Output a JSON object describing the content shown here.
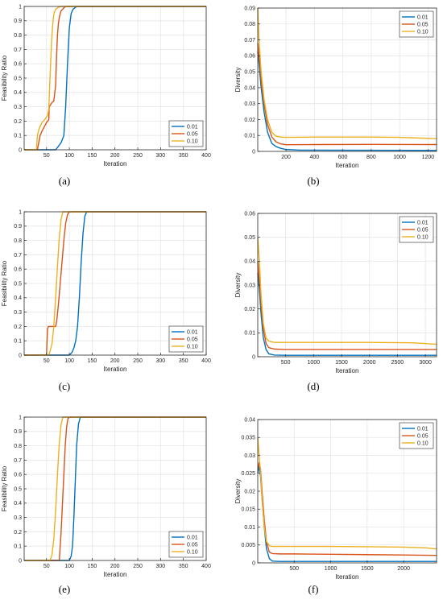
{
  "colors": {
    "s001": "#0072BD",
    "s005": "#D95319",
    "s010": "#EDB120",
    "grid": "#e6e6e6",
    "axis": "#262626"
  },
  "chart_data": [
    {
      "type": "line",
      "caption": "(a)",
      "xlabel": "Iteration",
      "ylabel": "Feasibility Ratio",
      "xlim": [
        1,
        400
      ],
      "ylim": [
        0,
        1
      ],
      "xticks": [
        50,
        100,
        150,
        200,
        250,
        300,
        350,
        400
      ],
      "yticks": [
        0,
        0.1,
        0.2,
        0.3,
        0.4,
        0.5,
        0.6,
        0.7,
        0.8,
        0.9,
        1
      ],
      "ytick_labels": [
        "0",
        "0.1",
        "0.2",
        "0.3",
        "0.4",
        "0.5",
        "0.6",
        "0.7",
        "0.8",
        "0.9",
        "1"
      ],
      "grid": true,
      "legend": "bottom-right",
      "series": [
        {
          "name": "0.01",
          "color": "#0072BD",
          "x": [
            1,
            70,
            75,
            82,
            88,
            92,
            96,
            100,
            104,
            108,
            112,
            116,
            400
          ],
          "y": [
            0,
            0,
            0.02,
            0.05,
            0.1,
            0.3,
            0.6,
            0.85,
            0.95,
            0.98,
            0.99,
            1,
            1
          ]
        },
        {
          "name": "0.05",
          "color": "#D95319",
          "x": [
            1,
            30,
            33,
            36,
            40,
            45,
            50,
            55,
            56,
            58,
            62,
            66,
            70,
            72,
            74,
            76,
            78,
            80,
            82,
            85,
            88,
            92,
            96,
            400
          ],
          "y": [
            0,
            0,
            0.05,
            0.1,
            0.13,
            0.16,
            0.19,
            0.21,
            0.3,
            0.31,
            0.33,
            0.34,
            0.45,
            0.65,
            0.8,
            0.88,
            0.92,
            0.95,
            0.97,
            0.98,
            0.99,
            1,
            1,
            1
          ]
        },
        {
          "name": "0.10",
          "color": "#EDB120",
          "x": [
            1,
            28,
            30,
            34,
            40,
            46,
            52,
            55,
            57,
            59,
            61,
            63,
            65,
            67,
            70,
            74,
            80,
            400
          ],
          "y": [
            0,
            0,
            0.1,
            0.15,
            0.19,
            0.21,
            0.24,
            0.28,
            0.45,
            0.6,
            0.75,
            0.85,
            0.92,
            0.96,
            0.98,
            0.99,
            1,
            1
          ]
        }
      ]
    },
    {
      "type": "line",
      "caption": "(b)",
      "xlabel": "Iteration",
      "ylabel": "Diversity",
      "xlim": [
        1,
        1260
      ],
      "ylim": [
        0,
        0.09
      ],
      "xticks": [
        200,
        400,
        600,
        800,
        1000,
        1200
      ],
      "yticks": [
        0,
        0.01,
        0.02,
        0.03,
        0.04,
        0.05,
        0.06,
        0.07,
        0.08,
        0.09
      ],
      "ytick_labels": [
        "0",
        "0.01",
        "0.02",
        "0.03",
        "0.04",
        "0.05",
        "0.06",
        "0.07",
        "0.08",
        "0.09"
      ],
      "grid": true,
      "legend": "top-right",
      "series": [
        {
          "name": "0.01",
          "color": "#0072BD",
          "x": [
            1,
            10,
            25,
            45,
            70,
            100,
            130,
            160,
            200,
            300,
            1260
          ],
          "y": [
            0.063,
            0.055,
            0.04,
            0.025,
            0.012,
            0.005,
            0.003,
            0.002,
            0.0012,
            0.0008,
            0.0006
          ]
        },
        {
          "name": "0.05",
          "color": "#D95319",
          "x": [
            1,
            10,
            25,
            45,
            70,
            100,
            130,
            160,
            200,
            400,
            800,
            1260
          ],
          "y": [
            0.068,
            0.06,
            0.045,
            0.03,
            0.017,
            0.009,
            0.006,
            0.0048,
            0.0042,
            0.0043,
            0.0044,
            0.0043
          ]
        },
        {
          "name": "0.10",
          "color": "#EDB120",
          "x": [
            1,
            10,
            25,
            45,
            70,
            100,
            130,
            160,
            200,
            400,
            800,
            1000,
            1260
          ],
          "y": [
            0.09,
            0.07,
            0.05,
            0.033,
            0.02,
            0.012,
            0.0095,
            0.009,
            0.0088,
            0.009,
            0.009,
            0.0088,
            0.008
          ]
        }
      ]
    },
    {
      "type": "line",
      "caption": "(c)",
      "xlabel": "Iteration",
      "ylabel": "Feasibility Ratio",
      "xlim": [
        1,
        400
      ],
      "ylim": [
        0,
        1
      ],
      "xticks": [
        50,
        100,
        150,
        200,
        250,
        300,
        350,
        400
      ],
      "yticks": [
        0,
        0.1,
        0.2,
        0.3,
        0.4,
        0.5,
        0.6,
        0.7,
        0.8,
        0.9,
        1
      ],
      "ytick_labels": [
        "0",
        "0.1",
        "0.2",
        "0.3",
        "0.4",
        "0.5",
        "0.6",
        "0.7",
        "0.8",
        "0.9",
        "1"
      ],
      "grid": true,
      "legend": "bottom-right",
      "series": [
        {
          "name": "0.01",
          "color": "#0072BD",
          "x": [
            1,
            100,
            106,
            110,
            114,
            118,
            122,
            126,
            130,
            134,
            138,
            400
          ],
          "y": [
            0,
            0,
            0.02,
            0.05,
            0.1,
            0.2,
            0.4,
            0.65,
            0.85,
            0.97,
            1,
            1
          ]
        },
        {
          "name": "0.05",
          "color": "#D95319",
          "x": [
            1,
            50,
            52,
            54,
            70,
            72,
            76,
            80,
            84,
            88,
            92,
            96,
            100,
            400
          ],
          "y": [
            0,
            0,
            0.18,
            0.2,
            0.2,
            0.23,
            0.35,
            0.5,
            0.65,
            0.8,
            0.92,
            0.98,
            1,
            1
          ]
        },
        {
          "name": "0.10",
          "color": "#EDB120",
          "x": [
            1,
            55,
            58,
            62,
            66,
            70,
            74,
            78,
            82,
            86,
            400
          ],
          "y": [
            0,
            0,
            0.03,
            0.08,
            0.2,
            0.4,
            0.62,
            0.82,
            0.95,
            1,
            1
          ]
        }
      ]
    },
    {
      "type": "line",
      "caption": "(d)",
      "xlabel": "Iteration",
      "ylabel": "Diversity",
      "xlim": [
        1,
        3200
      ],
      "ylim": [
        0,
        0.06
      ],
      "xticks": [
        500,
        1000,
        1500,
        2000,
        2500,
        3000
      ],
      "yticks": [
        0,
        0.01,
        0.02,
        0.03,
        0.04,
        0.05,
        0.06
      ],
      "ytick_labels": [
        "0",
        "0.01",
        "0.02",
        "0.03",
        "0.04",
        "0.05",
        "0.06"
      ],
      "grid": true,
      "legend": "top-right",
      "series": [
        {
          "name": "0.01",
          "color": "#0072BD",
          "x": [
            1,
            30,
            60,
            100,
            150,
            200,
            300,
            500,
            3200
          ],
          "y": [
            0.035,
            0.028,
            0.018,
            0.008,
            0.003,
            0.0012,
            0.0007,
            0.0006,
            0.0006
          ]
        },
        {
          "name": "0.05",
          "color": "#D95319",
          "x": [
            1,
            30,
            60,
            100,
            150,
            200,
            300,
            500,
            1000,
            2000,
            3200
          ],
          "y": [
            0.04,
            0.032,
            0.022,
            0.012,
            0.0055,
            0.0038,
            0.0032,
            0.003,
            0.003,
            0.003,
            0.003
          ]
        },
        {
          "name": "0.10",
          "color": "#EDB120",
          "x": [
            1,
            30,
            60,
            100,
            150,
            200,
            300,
            500,
            1000,
            2000,
            2800,
            3200
          ],
          "y": [
            0.05,
            0.04,
            0.026,
            0.014,
            0.0078,
            0.0065,
            0.006,
            0.006,
            0.006,
            0.006,
            0.0058,
            0.0052
          ]
        }
      ]
    },
    {
      "type": "line",
      "caption": "(e)",
      "xlabel": "Iteration",
      "ylabel": "Feasibility Ratio",
      "xlim": [
        1,
        400
      ],
      "ylim": [
        0,
        1
      ],
      "xticks": [
        50,
        100,
        150,
        200,
        250,
        300,
        350,
        400
      ],
      "yticks": [
        0,
        0.1,
        0.2,
        0.3,
        0.4,
        0.5,
        0.6,
        0.7,
        0.8,
        0.9,
        1
      ],
      "ytick_labels": [
        "0",
        "0.1",
        "0.2",
        "0.3",
        "0.4",
        "0.5",
        "0.6",
        "0.7",
        "0.8",
        "0.9",
        "1"
      ],
      "grid": true,
      "legend": "bottom-right",
      "series": [
        {
          "name": "0.01",
          "color": "#0072BD",
          "x": [
            1,
            100,
            104,
            107,
            110,
            113,
            116,
            120,
            124,
            400
          ],
          "y": [
            0,
            0,
            0.03,
            0.1,
            0.3,
            0.55,
            0.8,
            0.95,
            1,
            1
          ]
        },
        {
          "name": "0.05",
          "color": "#D95319",
          "x": [
            1,
            78,
            80,
            82,
            85,
            88,
            91,
            94,
            97,
            100,
            400
          ],
          "y": [
            0,
            0,
            0.1,
            0.2,
            0.4,
            0.6,
            0.8,
            0.93,
            0.99,
            1,
            1
          ]
        },
        {
          "name": "0.10",
          "color": "#EDB120",
          "x": [
            1,
            58,
            62,
            66,
            70,
            74,
            78,
            82,
            86,
            400
          ],
          "y": [
            0,
            0,
            0.04,
            0.15,
            0.35,
            0.6,
            0.82,
            0.95,
            1,
            1
          ]
        }
      ]
    },
    {
      "type": "line",
      "caption": "(f)",
      "xlabel": "Iteration",
      "ylabel": "Diversity",
      "xlim": [
        1,
        2450
      ],
      "ylim": [
        0,
        0.04
      ],
      "xticks": [
        500,
        1000,
        1500,
        2000
      ],
      "yticks": [
        0,
        0.005,
        0.01,
        0.015,
        0.02,
        0.025,
        0.03,
        0.035,
        0.04
      ],
      "ytick_labels": [
        "0",
        "0.005",
        "0.01",
        "0.015",
        "0.02",
        "0.025",
        "0.03",
        "0.035",
        "0.04"
      ],
      "grid": true,
      "legend": "top-right",
      "series": [
        {
          "name": "0.01",
          "color": "#0072BD",
          "x": [
            1,
            20,
            40,
            60,
            90,
            120,
            160,
            200,
            300,
            500,
            2450
          ],
          "y": [
            0.025,
            0.027,
            0.024,
            0.018,
            0.01,
            0.004,
            0.0012,
            0.0005,
            0.0004,
            0.0004,
            0.0004
          ]
        },
        {
          "name": "0.05",
          "color": "#D95319",
          "x": [
            1,
            20,
            40,
            60,
            90,
            120,
            160,
            200,
            300,
            500,
            1000,
            1500,
            2000,
            2450
          ],
          "y": [
            0.026,
            0.028,
            0.026,
            0.02,
            0.012,
            0.006,
            0.003,
            0.0026,
            0.0025,
            0.0025,
            0.0024,
            0.0023,
            0.0022,
            0.0021
          ]
        },
        {
          "name": "0.10",
          "color": "#EDB120",
          "x": [
            1,
            20,
            40,
            60,
            90,
            120,
            160,
            200,
            300,
            500,
            1000,
            1500,
            2000,
            2300,
            2450
          ],
          "y": [
            0.035,
            0.03,
            0.025,
            0.018,
            0.01,
            0.006,
            0.0048,
            0.0046,
            0.0046,
            0.0046,
            0.0046,
            0.0045,
            0.0044,
            0.0042,
            0.0039
          ]
        }
      ]
    }
  ]
}
